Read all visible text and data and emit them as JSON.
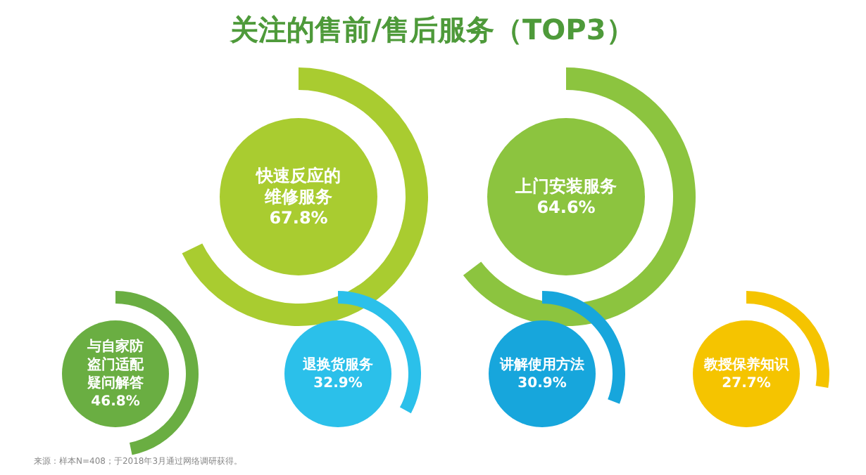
{
  "chart_data": {
    "type": "other",
    "title": "关注的售前/售后服务（TOP3）",
    "categories": [
      "快速反应的维修服务",
      "上门安装服务",
      "与自家防盗门适配疑问解答",
      "退换货服务",
      "讲解使用方法",
      "教授保养知识"
    ],
    "values": [
      67.8,
      64.6,
      46.8,
      32.9,
      30.9,
      27.7
    ],
    "value_labels": [
      "67.8%",
      "64.6%",
      "46.8%",
      "32.9%",
      "30.9%",
      "27.7%"
    ],
    "colors": [
      "#a9cc30",
      "#8cc43f",
      "#6aae42",
      "#2bc0ea",
      "#17a6dc",
      "#f5c400"
    ],
    "annotations": [
      "来源：样本N=408；于2018年3月通过网络调研获得。"
    ]
  }
}
